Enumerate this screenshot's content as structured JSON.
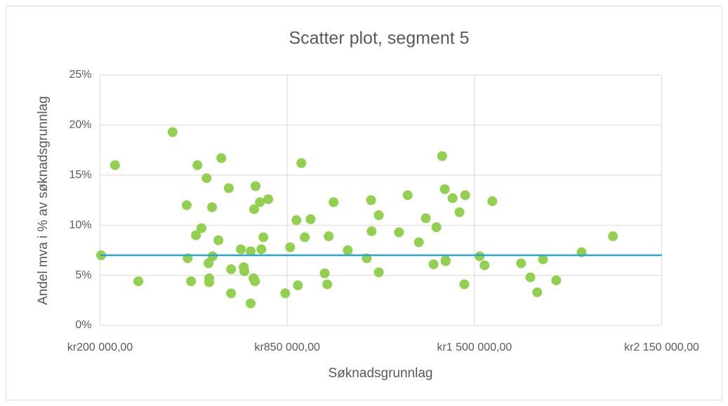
{
  "chart_data": {
    "type": "scatter",
    "title": "Scatter plot, segment 5",
    "xlabel": "Søknadsgrunnlag",
    "ylabel": "Andel mva i % av søknadsgrunnlag",
    "xlim": [
      200000,
      2150000
    ],
    "xticks": [
      {
        "value": 200000,
        "label": "kr200 000,00"
      },
      {
        "value": 850000,
        "label": "kr850 000,00"
      },
      {
        "value": 1500000,
        "label": "kr1 500 000,00"
      },
      {
        "value": 2150000,
        "label": "kr2 150 000,00"
      }
    ],
    "ylim": [
      0,
      25
    ],
    "yticks": [
      {
        "value": 0,
        "label": "0%"
      },
      {
        "value": 5,
        "label": "5%"
      },
      {
        "value": 10,
        "label": "10%"
      },
      {
        "value": 15,
        "label": "15%"
      },
      {
        "value": 20,
        "label": "20%"
      },
      {
        "value": 25,
        "label": "25%"
      }
    ],
    "grid": true,
    "reference_line": {
      "value": 7,
      "color": "#29a3d5"
    },
    "series": [
      {
        "color": "#92d050",
        "x": [
          203700,
          252000,
          333000,
          452000,
          501000,
          504000,
          516000,
          533000,
          538000,
          552000,
          570000,
          577000,
          579000,
          579000,
          589000,
          591000,
          611000,
          621000,
          647000,
          655000,
          655000,
          689000,
          699000,
          701000,
          723000,
          723000,
          733000,
          738000,
          740000,
          735000,
          755000,
          760000,
          767000,
          784000,
          843000,
          860000,
          882000,
          887000,
          899000,
          911000,
          931000,
          980000,
          989000,
          994000,
          1011000,
          1060000,
          1126000,
          1141000,
          1143000,
          1168000,
          1168000,
          1238000,
          1268000,
          1307000,
          1331000,
          1358000,
          1368000,
          1388000,
          1397000,
          1400000,
          1400000,
          1424000,
          1448000,
          1465000,
          1468000,
          1518000,
          1535000,
          1562000,
          1662000,
          1694000,
          1718000,
          1738000,
          1784000,
          1872000,
          1981000
        ],
        "values": [
          7.0,
          16.0,
          4.4,
          19.3,
          12.0,
          6.7,
          4.4,
          9.0,
          16.0,
          9.7,
          14.7,
          6.2,
          4.7,
          4.3,
          11.8,
          6.9,
          8.5,
          16.7,
          13.7,
          5.6,
          3.2,
          7.6,
          5.8,
          5.4,
          7.4,
          2.2,
          4.7,
          4.4,
          13.9,
          11.6,
          12.3,
          7.6,
          8.8,
          12.6,
          3.2,
          7.8,
          10.5,
          4.0,
          16.2,
          8.8,
          10.6,
          5.2,
          4.1,
          8.9,
          12.3,
          7.5,
          6.7,
          12.5,
          9.4,
          5.3,
          11.0,
          9.3,
          13.0,
          8.3,
          10.7,
          6.1,
          9.8,
          16.9,
          13.6,
          6.5,
          6.4,
          12.7,
          11.3,
          4.1,
          13.0,
          6.9,
          6.0,
          12.4,
          6.2,
          4.8,
          3.3,
          6.6,
          4.5,
          7.3,
          8.9
        ]
      }
    ]
  }
}
